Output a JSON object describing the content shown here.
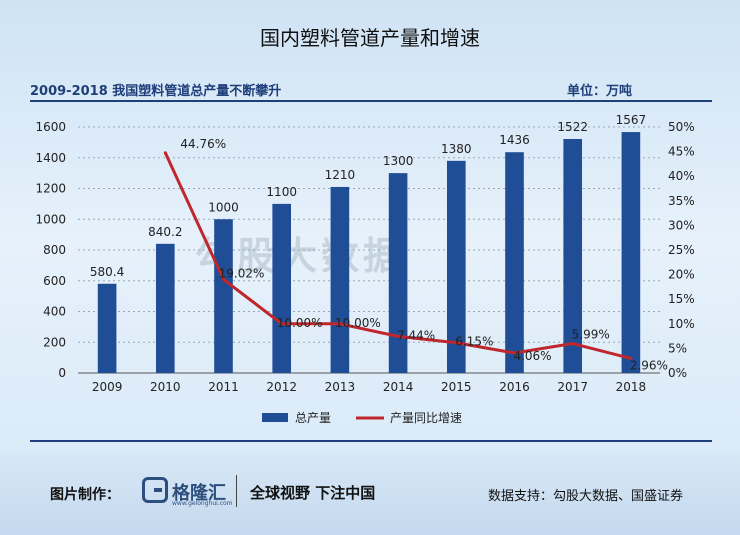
{
  "title": "国内塑料管道产量和增速",
  "subtitle": "2009-2018 我国塑料管道总产量不断攀升",
  "unit": "单位：万吨",
  "watermark": "勾股大数据",
  "chart_data": {
    "type": "bar",
    "categories": [
      "2009",
      "2010",
      "2011",
      "2012",
      "2013",
      "2014",
      "2015",
      "2016",
      "2017",
      "2018"
    ],
    "series": [
      {
        "name": "总产量",
        "type": "bar",
        "axis": "left",
        "color": "#1f4e96",
        "values": [
          580.4,
          840.2,
          1000,
          1100,
          1210,
          1300,
          1380,
          1436,
          1522,
          1567
        ],
        "labels": [
          "580.4",
          "840.2",
          "1000",
          "1100",
          "1210",
          "1300",
          "1380",
          "1436",
          "1522",
          "1567"
        ]
      },
      {
        "name": "产量同比增速",
        "type": "line",
        "axis": "right",
        "color": "#c0272d",
        "values": [
          null,
          44.76,
          19.02,
          10.0,
          10.0,
          7.44,
          6.15,
          4.06,
          5.99,
          2.96
        ],
        "labels": [
          null,
          "44.76%",
          "19.02%",
          "10.00%",
          "10.00%",
          "7.44%",
          "6.15%",
          "4.06%",
          "5.99%",
          "2.96%"
        ]
      }
    ],
    "y_left": {
      "min": 0,
      "max": 1600,
      "ticks": [
        "0",
        "200",
        "400",
        "600",
        "800",
        "1000",
        "1200",
        "1400",
        "1600"
      ]
    },
    "y_right": {
      "min": 0,
      "max": 50,
      "ticks": [
        "0%",
        "5%",
        "10%",
        "15%",
        "20%",
        "25%",
        "30%",
        "35%",
        "40%",
        "45%",
        "50%"
      ]
    },
    "grid": true,
    "legend_position": "bottom"
  },
  "footer": {
    "label": "图片制作：",
    "logo_text": "格隆汇",
    "logo_url": "www.gelonghui.com",
    "slogan": "全球视野 下注中国",
    "source": "数据支持：勾股大数据、国盛证券"
  }
}
